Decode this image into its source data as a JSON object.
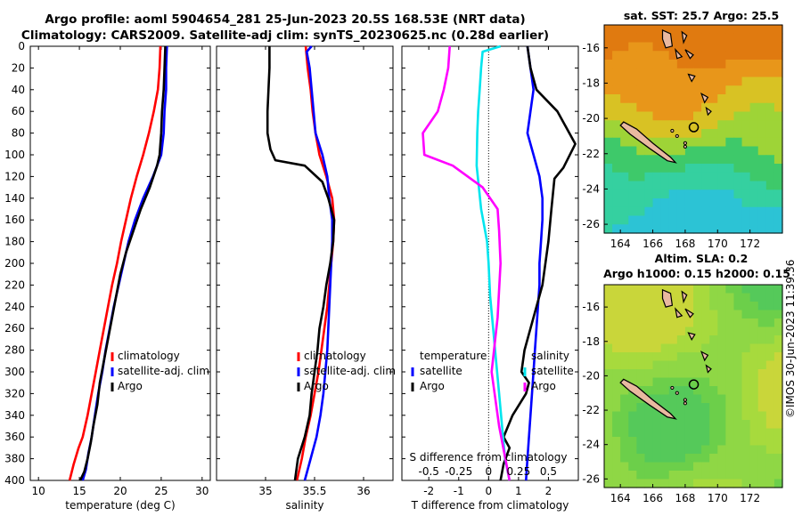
{
  "title": {
    "line1": "Argo profile: aoml 5904654_281 25-Jun-2023 20.5S 168.53E (NRT data)",
    "line2": "Climatology: CARS2009. Satellite-adj clim: synTS_20230625.nc (0.28d earlier)"
  },
  "colors": {
    "climatology": "#ff0000",
    "satellite": "#0000ff",
    "argo": "#000000",
    "argo_salinity_diff": "#ff00ff",
    "sat_salinity_diff": "#00e5ee"
  },
  "chart_data": [
    {
      "type": "line",
      "panel": "temperature",
      "xlabel": "temperature (deg C)",
      "ylabel": "",
      "xlim": [
        9,
        31
      ],
      "ylim": [
        400,
        0
      ],
      "xticks": [
        10,
        15,
        20,
        25,
        30
      ],
      "yticks": [
        0,
        20,
        40,
        60,
        80,
        100,
        120,
        140,
        160,
        180,
        200,
        220,
        240,
        260,
        280,
        300,
        320,
        340,
        360,
        380,
        400
      ],
      "legend": [
        "climatology",
        "satellite-adj. clim",
        "Argo"
      ],
      "series": [
        {
          "name": "climatology",
          "color": "#ff0000",
          "x": [
            24.9,
            24.8,
            24.6,
            24.1,
            23.5,
            22.8,
            22.0,
            21.3,
            20.7,
            20.1,
            19.6,
            19.0,
            18.5,
            18.0,
            17.5,
            17.0,
            16.5,
            16.0,
            15.4,
            14.9,
            14.3,
            13.8
          ],
          "depth": [
            0,
            20,
            40,
            60,
            80,
            100,
            120,
            140,
            160,
            180,
            200,
            220,
            240,
            260,
            280,
            300,
            320,
            340,
            360,
            370,
            385,
            400
          ]
        },
        {
          "name": "satellite-adj. clim",
          "color": "#0000ff",
          "x": [
            25.7,
            25.6,
            25.6,
            25.4,
            25.3,
            25.0,
            24.0,
            22.8,
            21.8,
            21.0,
            20.4,
            19.8,
            19.2,
            18.7,
            18.2,
            17.8,
            17.3,
            16.9,
            16.5,
            16.1,
            15.8,
            15.4
          ],
          "depth": [
            0,
            20,
            40,
            60,
            80,
            100,
            120,
            140,
            160,
            180,
            200,
            220,
            240,
            260,
            280,
            300,
            320,
            340,
            360,
            375,
            390,
            400
          ]
        },
        {
          "name": "Argo",
          "color": "#000000",
          "x": [
            25.5,
            25.4,
            25.3,
            25.1,
            25.0,
            24.8,
            24.5,
            23.6,
            22.5,
            21.6,
            20.7,
            20.0,
            19.5,
            19.0,
            18.5,
            18.0,
            17.5,
            17.2,
            16.7,
            16.4,
            16.0,
            15.6,
            15.1
          ],
          "depth": [
            0,
            20,
            40,
            60,
            80,
            100,
            110,
            130,
            150,
            170,
            190,
            210,
            230,
            250,
            270,
            290,
            310,
            330,
            350,
            365,
            380,
            392,
            400
          ]
        }
      ]
    },
    {
      "type": "line",
      "panel": "salinity",
      "xlabel": "salinity",
      "xlim": [
        34.5,
        36.3
      ],
      "ylim": [
        400,
        0
      ],
      "xticks": [
        35,
        35.5,
        36
      ],
      "legend": [
        "climatology",
        "satellite-adj. clim",
        "Argo"
      ],
      "series": [
        {
          "name": "climatology",
          "color": "#ff0000",
          "x": [
            35.41,
            35.43,
            35.46,
            35.48,
            35.51,
            35.55,
            35.62,
            35.68,
            35.7,
            35.69,
            35.67,
            35.65,
            35.63,
            35.6,
            35.57,
            35.54,
            35.5,
            35.46,
            35.41,
            35.37,
            35.32
          ],
          "depth": [
            0,
            20,
            40,
            60,
            80,
            100,
            120,
            140,
            160,
            180,
            200,
            220,
            240,
            260,
            280,
            300,
            320,
            340,
            360,
            380,
            400
          ]
        },
        {
          "name": "satellite-adj. clim",
          "color": "#0000ff",
          "x": [
            35.47,
            35.42,
            35.45,
            35.47,
            35.51,
            35.58,
            35.63,
            35.65,
            35.68,
            35.68,
            35.67,
            35.66,
            35.65,
            35.64,
            35.63,
            35.61,
            35.59,
            35.56,
            35.52,
            35.46,
            35.4
          ],
          "depth": [
            0,
            5,
            20,
            40,
            80,
            100,
            120,
            140,
            160,
            180,
            200,
            220,
            240,
            260,
            280,
            300,
            320,
            340,
            360,
            380,
            400
          ]
        },
        {
          "name": "Argo",
          "color": "#000000",
          "x": [
            35.04,
            35.04,
            35.03,
            35.02,
            35.02,
            35.05,
            35.1,
            35.4,
            35.58,
            35.64,
            35.7,
            35.69,
            35.66,
            35.62,
            35.59,
            35.55,
            35.53,
            35.5,
            35.47,
            35.45,
            35.4,
            35.33,
            35.3
          ],
          "depth": [
            0,
            20,
            40,
            60,
            80,
            95,
            105,
            110,
            125,
            140,
            160,
            180,
            200,
            220,
            240,
            260,
            280,
            300,
            320,
            340,
            360,
            380,
            400
          ]
        }
      ]
    },
    {
      "type": "line",
      "panel": "differences",
      "xlabel": "T difference from climatology",
      "top_axis_label": "S difference from climatology",
      "xlim": [
        -2.9,
        3.0
      ],
      "ylim": [
        400,
        0
      ],
      "xticks": [
        -2,
        -1,
        0,
        1,
        2
      ],
      "top_ticks": [
        -0.5,
        -0.25,
        0,
        0.25,
        0.5
      ],
      "legend_left": {
        "heading": "temperature",
        "items": [
          "satellite",
          "Argo"
        ]
      },
      "legend_right": {
        "heading": "salinity",
        "items": [
          "satellite",
          "Argo"
        ]
      },
      "series": [
        {
          "name": "temperature satellite",
          "color": "#0000ff",
          "x": [
            1.3,
            1.4,
            1.5,
            1.4,
            1.3,
            1.5,
            1.7,
            1.8,
            1.8,
            1.75,
            1.7,
            1.7,
            1.65,
            1.6,
            1.55,
            1.5,
            1.45,
            1.4,
            1.35,
            1.3,
            1.25
          ],
          "depth": [
            0,
            20,
            40,
            60,
            80,
            100,
            120,
            140,
            160,
            180,
            200,
            220,
            240,
            260,
            280,
            300,
            320,
            340,
            360,
            380,
            400
          ]
        },
        {
          "name": "temperature Argo",
          "color": "#000000",
          "x": [
            1.3,
            1.4,
            1.6,
            2.3,
            2.9,
            2.5,
            2.2,
            2.1,
            2.0,
            1.8,
            1.6,
            1.4,
            1.2,
            1.1,
            1.35,
            1.25,
            0.8,
            0.5,
            0.7,
            0.5,
            0.4
          ],
          "depth": [
            0,
            20,
            40,
            60,
            90,
            112,
            122,
            150,
            180,
            220,
            240,
            260,
            280,
            300,
            310,
            320,
            340,
            360,
            370,
            385,
            400
          ]
        },
        {
          "name": "salinity satellite",
          "color": "#00e5ee",
          "x": [
            0.4,
            -0.2,
            -0.25,
            -0.3,
            -0.35,
            -0.38,
            -0.4,
            -0.25,
            -0.05,
            0.0,
            0.05,
            0.15,
            0.25,
            0.35,
            0.45,
            0.55,
            0.7
          ],
          "depth": [
            0,
            5,
            20,
            40,
            60,
            80,
            110,
            150,
            180,
            200,
            230,
            260,
            290,
            320,
            350,
            380,
            400
          ]
        },
        {
          "name": "salinity Argo",
          "color": "#ff00ff",
          "x": [
            -1.3,
            -1.35,
            -1.5,
            -1.7,
            -2.2,
            -2.15,
            -1.2,
            -0.2,
            0.3,
            0.35,
            0.4,
            0.3,
            0.1,
            0.35,
            0.7
          ],
          "depth": [
            0,
            20,
            40,
            60,
            80,
            100,
            110,
            130,
            150,
            170,
            200,
            250,
            300,
            350,
            400
          ]
        }
      ]
    },
    {
      "type": "heatmap",
      "panel": "sst_map",
      "title": "sat. SST: 25.7 Argo: 25.5",
      "xticks": [
        164,
        166,
        168,
        170,
        172
      ],
      "yticks": [
        -16,
        -18,
        -20,
        -22,
        -24,
        -26
      ],
      "xlim": [
        163,
        174
      ],
      "ylim": [
        -26.5,
        -14.7
      ],
      "argo_position": {
        "lon": 168.53,
        "lat": -20.5
      }
    },
    {
      "type": "heatmap",
      "panel": "sla_map",
      "title_line1": "Altim. SLA: 0.2",
      "title_line2": "Argo h1000: 0.15 h2000: 0.15",
      "xticks": [
        164,
        166,
        168,
        170,
        172
      ],
      "yticks": [
        -16,
        -18,
        -20,
        -22,
        -24,
        -26
      ],
      "xlim": [
        163,
        174
      ],
      "ylim": [
        -26.5,
        -14.7
      ],
      "argo_position": {
        "lon": 168.53,
        "lat": -20.5
      }
    }
  ],
  "stamp": "©IMOS 30-Jun-2023 11:39:36"
}
